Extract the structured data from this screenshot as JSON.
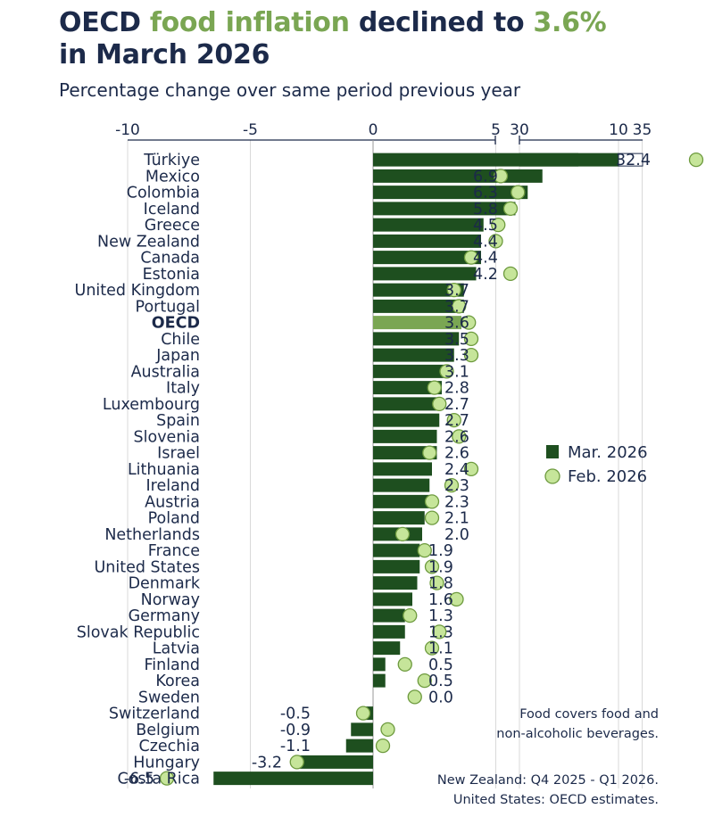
{
  "title": {
    "part1": "OECD ",
    "highlight1": "food inflation",
    "part2": " declined to ",
    "highlight2": "3.6%",
    "line2": "in March 2026"
  },
  "subtitle": "Percentage change over same period previous year",
  "notes": {
    "food_line1": "Food covers food and",
    "food_line2": "non-alcoholic beverages.",
    "nz": "New Zealand: Q4 2025 - Q1 2026.",
    "us": "United States: OECD estimates."
  },
  "colors": {
    "title": "#1c2a4a",
    "accent": "#7aa653",
    "bar": "#1e4f1f",
    "oecd_bar": "#7aa653",
    "dot_fill": "#c6e59a",
    "dot_stroke": "#6d9a3e",
    "axis": "#1c2a4a",
    "grid": "#d9d9d9"
  },
  "chart_data": {
    "type": "bar",
    "orientation": "horizontal",
    "axis_break": [
      10,
      30
    ],
    "xlim": [
      -10,
      40
    ],
    "xticks": [
      "-10",
      "-5",
      "0",
      "5",
      "10",
      "30",
      "35"
    ],
    "xtick_values": [
      -10,
      -5,
      0,
      5,
      10,
      30,
      35
    ],
    "grid": true,
    "legend_position": "right",
    "categories": [
      "Türkiye",
      "Mexico",
      "Colombia",
      "Iceland",
      "Greece",
      "New Zealand",
      "Canada",
      "Estonia",
      "United Kingdom",
      "Portugal",
      "OECD",
      "Chile",
      "Japan",
      "Australia",
      "Italy",
      "Luxembourg",
      "Spain",
      "Slovenia",
      "Israel",
      "Lithuania",
      "Ireland",
      "Austria",
      "Poland",
      "Netherlands",
      "France",
      "United States",
      "Denmark",
      "Norway",
      "Germany",
      "Slovak Republic",
      "Latvia",
      "Finland",
      "Korea",
      "Sweden",
      "Switzerland",
      "Belgium",
      "Czechia",
      "Hungary",
      "Costa Rica"
    ],
    "value_labels": [
      "32.4",
      "6.9",
      "6.3",
      "5.8",
      "4.5",
      "4.4",
      "4.4",
      "4.2",
      "3.7",
      "3.7",
      "3.6",
      "3.5",
      "3.3",
      "3.1",
      "2.8",
      "2.7",
      "2.7",
      "2.6",
      "2.6",
      "2.4",
      "2.3",
      "2.3",
      "2.1",
      "2.0",
      "1.9",
      "1.9",
      "1.8",
      "1.6",
      "1.3",
      "1.3",
      "1.1",
      "0.5",
      "0.5",
      "0.0",
      "-0.5",
      "-0.9",
      "-1.1",
      "-3.2",
      "-6.5"
    ],
    "highlight_category": "OECD",
    "series": [
      {
        "name": "Mar. 2026",
        "marker": "bar",
        "values": [
          32.4,
          6.9,
          6.3,
          5.8,
          4.5,
          4.4,
          4.4,
          4.2,
          3.7,
          3.7,
          3.6,
          3.5,
          3.3,
          3.1,
          2.8,
          2.7,
          2.7,
          2.6,
          2.6,
          2.4,
          2.3,
          2.3,
          2.1,
          2.0,
          1.9,
          1.9,
          1.8,
          1.6,
          1.3,
          1.3,
          1.1,
          0.5,
          0.5,
          0.0,
          -0.5,
          -0.9,
          -1.1,
          -3.2,
          -6.5
        ]
      },
      {
        "name": "Feb. 2026",
        "marker": "dot",
        "values": [
          37.2,
          5.2,
          5.9,
          5.6,
          5.1,
          5.0,
          4.0,
          5.6,
          3.3,
          3.5,
          3.9,
          4.0,
          4.0,
          3.0,
          2.5,
          2.7,
          3.3,
          3.5,
          2.3,
          4.0,
          3.2,
          2.4,
          2.4,
          1.2,
          2.1,
          2.4,
          2.6,
          3.4,
          1.5,
          2.7,
          2.4,
          1.3,
          2.1,
          1.7,
          -0.4,
          0.6,
          0.4,
          -3.1,
          -8.4
        ]
      }
    ]
  }
}
